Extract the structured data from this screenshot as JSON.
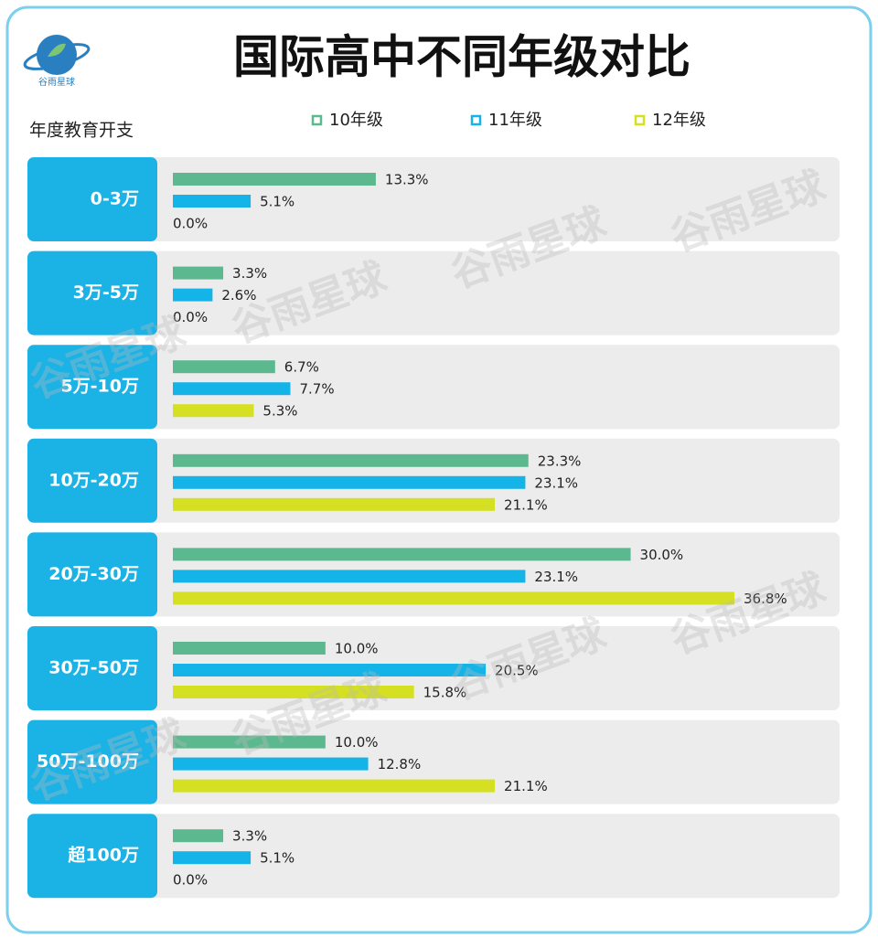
{
  "chart_data": {
    "type": "bar",
    "orientation": "horizontal",
    "title": "国际高中不同年级对比",
    "brand": "谷雨星球",
    "y_label": "年度教育开支",
    "categories": [
      "0-3万",
      "3万-5万",
      "5万-10万",
      "10万-20万",
      "20万-30万",
      "30万-50万",
      "50万-100万",
      "超100万"
    ],
    "series": [
      {
        "name": "10年级",
        "color": "#5cb88f",
        "values": [
          13.3,
          3.3,
          6.7,
          23.3,
          30.0,
          10.0,
          10.0,
          3.3
        ],
        "value_labels": [
          "13.3%",
          "3.3%",
          "6.7%",
          "23.3%",
          "30.0%",
          "10.0%",
          "10.0%",
          "3.3%"
        ]
      },
      {
        "name": "11年级",
        "color": "#14b4e8",
        "values": [
          5.1,
          2.6,
          7.7,
          23.1,
          23.1,
          20.5,
          12.8,
          5.1
        ],
        "value_labels": [
          "5.1%",
          "2.6%",
          "7.7%",
          "23.1%",
          "23.1%",
          "20.5%",
          "12.8%",
          "5.1%"
        ]
      },
      {
        "name": "12年级",
        "color": "#d4e021",
        "values": [
          0.0,
          0.0,
          5.3,
          21.1,
          36.8,
          15.8,
          21.1,
          0.0
        ],
        "value_labels": [
          "0.0%",
          "0.0%",
          "5.3%",
          "21.1%",
          "36.8%",
          "15.8%",
          "21.1%",
          "0.0%"
        ]
      }
    ]
  }
}
